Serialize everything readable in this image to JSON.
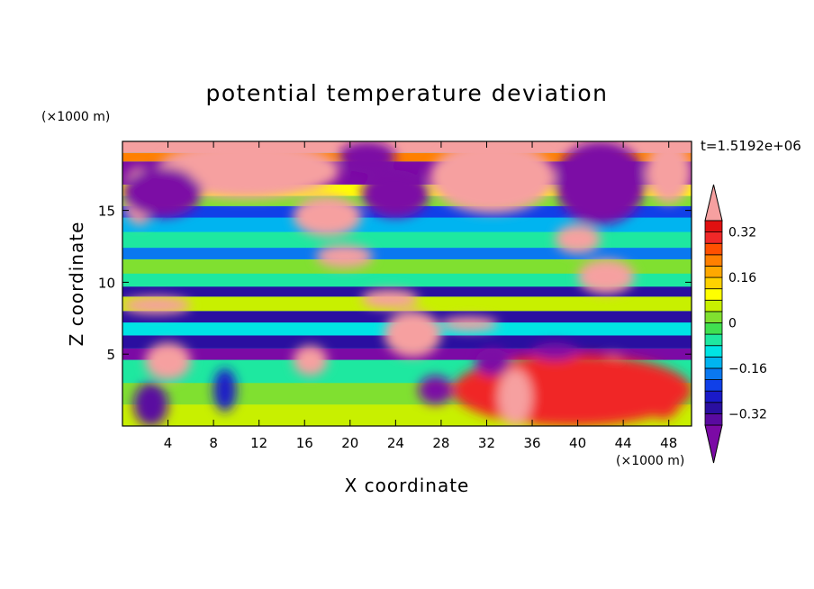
{
  "chart_data": {
    "type": "heatmap",
    "title": "potential temperature deviation",
    "xlabel": "X coordinate",
    "ylabel": "Z coordinate",
    "x_unit": "(×1000 m)",
    "y_unit": "(×1000 m)",
    "time_label": "t=1.5192e+06",
    "xlim": [
      0,
      50
    ],
    "ylim": [
      0,
      19.8
    ],
    "x_ticks": [
      "4",
      "8",
      "12",
      "16",
      "20",
      "24",
      "28",
      "32",
      "36",
      "40",
      "44",
      "48"
    ],
    "x_tick_values": [
      4,
      8,
      12,
      16,
      20,
      24,
      28,
      32,
      36,
      40,
      44,
      48
    ],
    "y_ticks": [
      "5",
      "10",
      "15"
    ],
    "y_tick_values": [
      5,
      10,
      15
    ],
    "colorbar": {
      "levels": [
        -0.4,
        -0.36,
        -0.32,
        -0.28,
        -0.24,
        -0.2,
        -0.16,
        -0.12,
        -0.08,
        -0.04,
        0,
        0.04,
        0.08,
        0.12,
        0.16,
        0.2,
        0.24,
        0.28,
        0.32,
        0.36,
        0.4
      ],
      "colors": [
        "#7b0aa5",
        "#5a0aa0",
        "#2a0fa0",
        "#1a1ac8",
        "#1040e8",
        "#0a78f0",
        "#00b4f0",
        "#00e4e4",
        "#1ee8a0",
        "#40e050",
        "#80e030",
        "#c8f000",
        "#ffff00",
        "#ffd200",
        "#ffa800",
        "#ff8000",
        "#ff5000",
        "#f02828",
        "#e01010",
        "#f6a0a0"
      ],
      "labels": [
        "0.32",
        "0.16",
        "0",
        "−0.16",
        "−0.32"
      ],
      "label_values": [
        0.32,
        0.16,
        0,
        -0.16,
        -0.32
      ]
    },
    "layers": [
      {
        "z": [
          0,
          1.5
        ],
        "v": 0.05
      },
      {
        "z": [
          1.5,
          3
        ],
        "v": 0.02
      },
      {
        "z": [
          3,
          4.6
        ],
        "v": -0.05
      },
      {
        "z": [
          4.6,
          5.4
        ],
        "v": -0.4
      },
      {
        "z": [
          5.4,
          6.3
        ],
        "v": -0.3
      },
      {
        "z": [
          6.3,
          7.2
        ],
        "v": -0.12
      },
      {
        "z": [
          7.2,
          8
        ],
        "v": -0.3
      },
      {
        "z": [
          8,
          9
        ],
        "v": 0.04
      },
      {
        "z": [
          9,
          9.7
        ],
        "v": -0.3
      },
      {
        "z": [
          9.7,
          10.6
        ],
        "v": -0.05
      },
      {
        "z": [
          10.6,
          11.6
        ],
        "v": 0.03
      },
      {
        "z": [
          11.6,
          12.4
        ],
        "v": -0.18
      },
      {
        "z": [
          12.4,
          13.5
        ],
        "v": -0.06
      },
      {
        "z": [
          13.5,
          14.5
        ],
        "v": -0.14
      },
      {
        "z": [
          14.5,
          15.3
        ],
        "v": -0.22
      },
      {
        "z": [
          15.3,
          16
        ],
        "v": 0.02
      },
      {
        "z": [
          16,
          16.8
        ],
        "v": 0.1
      },
      {
        "z": [
          16.8,
          18.4
        ],
        "v": -0.4
      },
      {
        "z": [
          18.4,
          19
        ],
        "v": 0.2
      },
      {
        "z": [
          19,
          19.8
        ],
        "v": 0.4
      }
    ],
    "features": [
      {
        "x": [
          0,
          3
        ],
        "z": [
          14,
          18
        ],
        "v": 0.4
      },
      {
        "x": [
          3,
          19
        ],
        "z": [
          15.8,
          19.8
        ],
        "v": 0.4
      },
      {
        "x": [
          19,
          24
        ],
        "z": [
          17.6,
          19.8
        ],
        "v": -0.4
      },
      {
        "x": [
          27,
          38
        ],
        "z": [
          14.8,
          19.8
        ],
        "v": 0.4
      },
      {
        "x": [
          38,
          46
        ],
        "z": [
          14,
          19.8
        ],
        "v": -0.4
      },
      {
        "x": [
          46,
          50
        ],
        "z": [
          15.5,
          19.8
        ],
        "v": 0.4
      },
      {
        "x": [
          0,
          7
        ],
        "z": [
          14.5,
          18
        ],
        "v": -0.4
      },
      {
        "x": [
          6,
          19
        ],
        "z": [
          16.8,
          17.7
        ],
        "v": 0.4
      },
      {
        "x": [
          21,
          27
        ],
        "z": [
          14.5,
          17.8
        ],
        "v": -0.4
      },
      {
        "x": [
          15,
          21
        ],
        "z": [
          13.2,
          16
        ],
        "v": 0.4
      },
      {
        "x": [
          17,
          22
        ],
        "z": [
          11,
          12.6
        ],
        "v": 0.4
      },
      {
        "x": [
          38,
          42
        ],
        "z": [
          12,
          14
        ],
        "v": 0.4
      },
      {
        "x": [
          40,
          45
        ],
        "z": [
          9.2,
          11.6
        ],
        "v": 0.4
      },
      {
        "x": [
          0,
          6
        ],
        "z": [
          7.8,
          9
        ],
        "v": 0.4
      },
      {
        "x": [
          21,
          26
        ],
        "z": [
          8.2,
          9.5
        ],
        "v": 0.4
      },
      {
        "x": [
          23,
          28
        ],
        "z": [
          4.8,
          8
        ],
        "v": 0.4
      },
      {
        "x": [
          28,
          33
        ],
        "z": [
          6.6,
          7.6
        ],
        "v": 0.4
      },
      {
        "x": [
          2,
          6
        ],
        "z": [
          3.2,
          5.8
        ],
        "v": 0.4
      },
      {
        "x": [
          15,
          18
        ],
        "z": [
          3.5,
          5.6
        ],
        "v": 0.4
      },
      {
        "x": [
          41,
          45
        ],
        "z": [
          1.8,
          5
        ],
        "v": 0.4
      },
      {
        "x": [
          29,
          50
        ],
        "z": [
          0,
          5
        ],
        "v": 0.3
      },
      {
        "x": [
          33,
          36
        ],
        "z": [
          0,
          4
        ],
        "v": 0.4
      },
      {
        "x": [
          36,
          42
        ],
        "z": [
          1,
          4.5
        ],
        "v": 0.3
      },
      {
        "x": [
          46,
          49
        ],
        "z": [
          0.5,
          3
        ],
        "v": 0.3
      },
      {
        "x": [
          1,
          4
        ],
        "z": [
          0,
          3
        ],
        "v": -0.34
      },
      {
        "x": [
          8,
          10
        ],
        "z": [
          1,
          4
        ],
        "v": -0.28
      },
      {
        "x": [
          26,
          29
        ],
        "z": [
          1.5,
          3.5
        ],
        "v": -0.4
      },
      {
        "x": [
          31,
          34
        ],
        "z": [
          3.5,
          5.4
        ],
        "v": -0.4
      },
      {
        "x": [
          36,
          40
        ],
        "z": [
          4.6,
          5.8
        ],
        "v": -0.4
      }
    ]
  }
}
